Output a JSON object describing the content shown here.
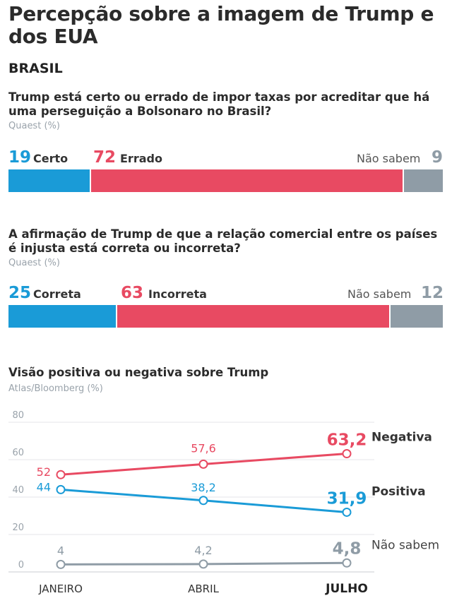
{
  "title": "Percepção sobre a imagem de Trump e dos EUA",
  "country": "BRASIL",
  "colors": {
    "blue": "#1a9bd7",
    "red": "#e84a62",
    "gray": "#8f9ca6"
  },
  "q1": {
    "question": "Trump está certo ou errado de impor taxas por acreditar que há uma perseguição a Bolsonaro no Brasil?",
    "source": "Quaest (%)",
    "segments": [
      {
        "label": "Certo",
        "value": 19
      },
      {
        "label": "Errado",
        "value": 72
      },
      {
        "label": "Não sabem",
        "value": 9
      }
    ]
  },
  "q2": {
    "question": "A afirmação de Trump de que a relação comercial entre os países é injusta está correta ou incorreta?",
    "source": "Quaest (%)",
    "segments": [
      {
        "label": "Correta",
        "value": 25
      },
      {
        "label": "Incorreta",
        "value": 63
      },
      {
        "label": "Não sabem",
        "value": 12
      }
    ]
  },
  "q3": {
    "title": "Visão positiva ou negativa sobre Trump",
    "source": "Atlas/Bloomberg (%)"
  },
  "chart_data": [
    {
      "type": "bar",
      "stacked": true,
      "categories": [
        "Certo",
        "Errado",
        "Não sabem"
      ],
      "values": [
        19,
        72,
        9
      ]
    },
    {
      "type": "bar",
      "stacked": true,
      "categories": [
        "Correta",
        "Incorreta",
        "Não sabem"
      ],
      "values": [
        25,
        63,
        12
      ]
    },
    {
      "type": "line",
      "x": [
        "JANEIRO",
        "ABRIL",
        "JULHO"
      ],
      "series": [
        {
          "name": "Negativa",
          "values": [
            52,
            57.6,
            63.2
          ],
          "labels": [
            "52",
            "57,6",
            "63,2"
          ]
        },
        {
          "name": "Positiva",
          "values": [
            44,
            38.2,
            31.9
          ],
          "labels": [
            "44",
            "38,2",
            "31,9"
          ]
        },
        {
          "name": "Não sabem",
          "values": [
            4,
            4.2,
            4.8
          ],
          "labels": [
            "4",
            "4,2",
            "4,8"
          ]
        }
      ],
      "yticks": [
        "0",
        "20",
        "40",
        "60",
        "80"
      ],
      "ylim": [
        0,
        80
      ],
      "grid": true
    }
  ]
}
